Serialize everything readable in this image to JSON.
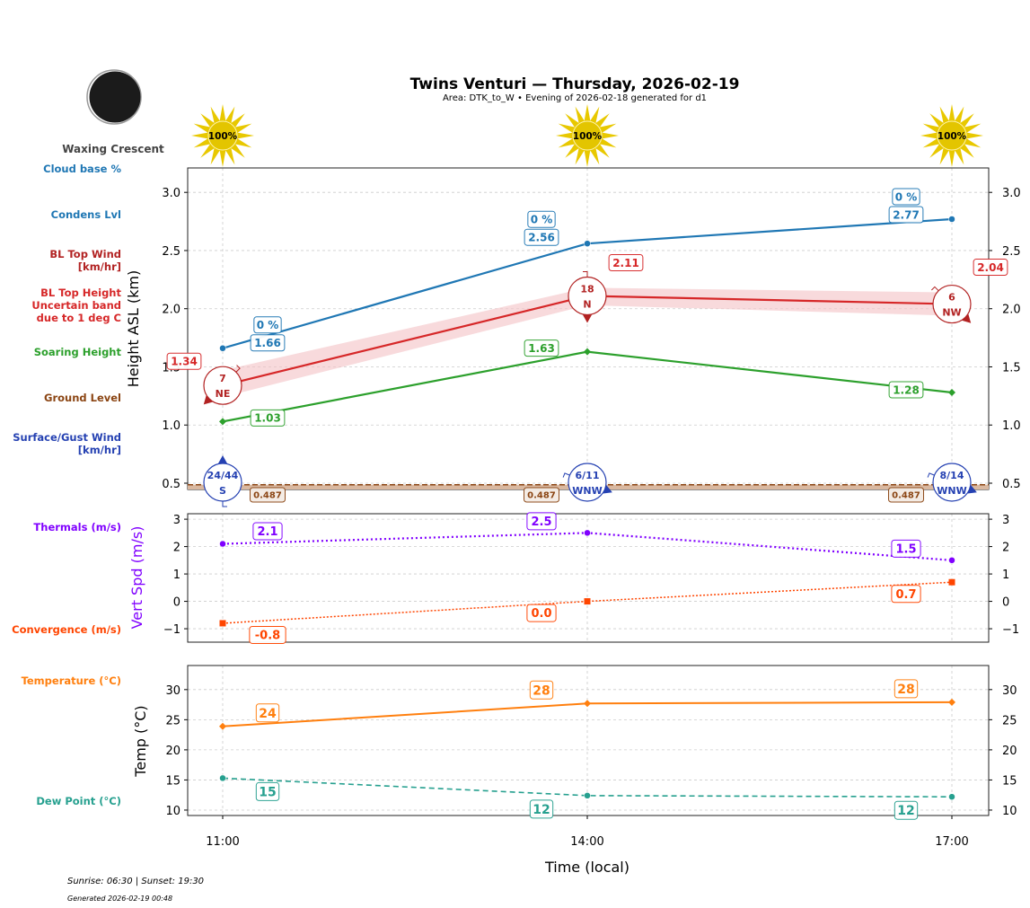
{
  "header": {
    "title": "Twins Venturi — Thursday, 2026-02-19",
    "subtitle": "Area: DTK_to_W • Evening of 2026-02-18 generated for d1",
    "moon_phase": "Waxing Crescent"
  },
  "footer": {
    "sun_times": "Sunrise: 06:30 | Sunset: 19:30",
    "generated": "Generated 2026-02-19 00:48"
  },
  "left_labels": {
    "cloud_base": "Cloud base %",
    "condens": "Condens Lvl",
    "bl_wind": [
      "BL Top Wind",
      "[km/hr]"
    ],
    "bl_top": [
      "BL Top Height",
      "Uncertain band",
      "due to 1 deg C"
    ],
    "soaring": "Soaring Height",
    "ground": "Ground Level",
    "surface_wind": [
      "Surface/Gust Wind",
      "[km/hr]"
    ],
    "thermals": "Thermals (m/s)",
    "convergence": "Convergence (m/s)",
    "temperature": "Temperature (°C)",
    "dew": "Dew Point (°C)"
  },
  "colors": {
    "condens": "#1f77b4",
    "bl_top": "#d62728",
    "band": "#f4c2c4",
    "soaring": "#2ca02c",
    "ground": "#8b4513",
    "ground_fill": "#d9b8a0",
    "surface_wind": "#2541b2",
    "thermals": "#8000ff",
    "convergence": "#ff4500",
    "temperature": "#ff7f0e",
    "dew": "#26a08f",
    "sun": "#e8c800"
  },
  "chart_data": [
    {
      "type": "line",
      "ylabel": "Height ASL (km)",
      "ylim": [
        0.446,
        3.21
      ],
      "yticks": [
        "0.5",
        "1.0",
        "1.5",
        "2.0",
        "2.5",
        "3.0"
      ],
      "grid": true,
      "x": [
        "11:00",
        "14:00",
        "17:00"
      ],
      "sun_percent": [
        "100%",
        "100%",
        "100%"
      ],
      "series": [
        {
          "key": "condens",
          "values": [
            1.66,
            2.56,
            2.77
          ],
          "labels": [
            "1.66",
            "2.56",
            "2.77"
          ],
          "cloud_base": [
            "0 %",
            "0 %",
            "0 %"
          ]
        },
        {
          "key": "bl_top",
          "values": [
            1.34,
            2.11,
            2.04
          ],
          "labels": [
            "1.34",
            "2.11",
            "2.04"
          ],
          "band_low": [
            1.24,
            2.03,
            1.94
          ],
          "band_high": [
            1.47,
            2.18,
            2.14
          ]
        },
        {
          "key": "soaring",
          "values": [
            1.03,
            1.63,
            1.28
          ],
          "labels": [
            "1.03",
            "1.63",
            "1.28"
          ]
        },
        {
          "key": "ground",
          "values": [
            0.487,
            0.487,
            0.487
          ],
          "labels": [
            "0.487",
            "0.487",
            "0.487"
          ]
        }
      ],
      "bl_wind": [
        {
          "speed": "7",
          "dir": "NE",
          "deg": 45
        },
        {
          "speed": "18",
          "dir": "N",
          "deg": 0
        },
        {
          "speed": "6",
          "dir": "NW",
          "deg": 315
        }
      ],
      "surface_wind": [
        {
          "speed": "24/44",
          "dir": "S",
          "deg": 180
        },
        {
          "speed": "6/11",
          "dir": "WNW",
          "deg": 292
        },
        {
          "speed": "8/14",
          "dir": "WNW",
          "deg": 292
        }
      ]
    },
    {
      "type": "line",
      "ylabel": "Vert Spd (m/s)",
      "ylim": [
        -1.49,
        3.2
      ],
      "yticks": [
        "−1",
        "0",
        "1",
        "2",
        "3"
      ],
      "grid": true,
      "x": [
        "11:00",
        "14:00",
        "17:00"
      ],
      "series": [
        {
          "key": "thermals",
          "values": [
            2.1,
            2.5,
            1.5
          ],
          "labels": [
            "2.1",
            "2.5",
            "1.5"
          ]
        },
        {
          "key": "convergence",
          "values": [
            -0.8,
            0.0,
            0.7
          ],
          "labels": [
            "-0.8",
            "0.0",
            "0.7"
          ]
        }
      ]
    },
    {
      "type": "line",
      "ylabel": "Temp (°C)",
      "xlabel": "Time (local)",
      "ylim": [
        9.1,
        34.0
      ],
      "yticks": [
        "10",
        "15",
        "20",
        "25",
        "30"
      ],
      "grid": true,
      "x": [
        "11:00",
        "14:00",
        "17:00"
      ],
      "xticks": [
        "11:00",
        "14:00",
        "17:00"
      ],
      "series": [
        {
          "key": "temperature",
          "values": [
            23.9,
            27.7,
            27.9
          ],
          "labels": [
            "24",
            "28",
            "28"
          ]
        },
        {
          "key": "dew",
          "values": [
            15.3,
            12.4,
            12.2
          ],
          "labels": [
            "15",
            "12",
            "12"
          ]
        }
      ]
    }
  ]
}
